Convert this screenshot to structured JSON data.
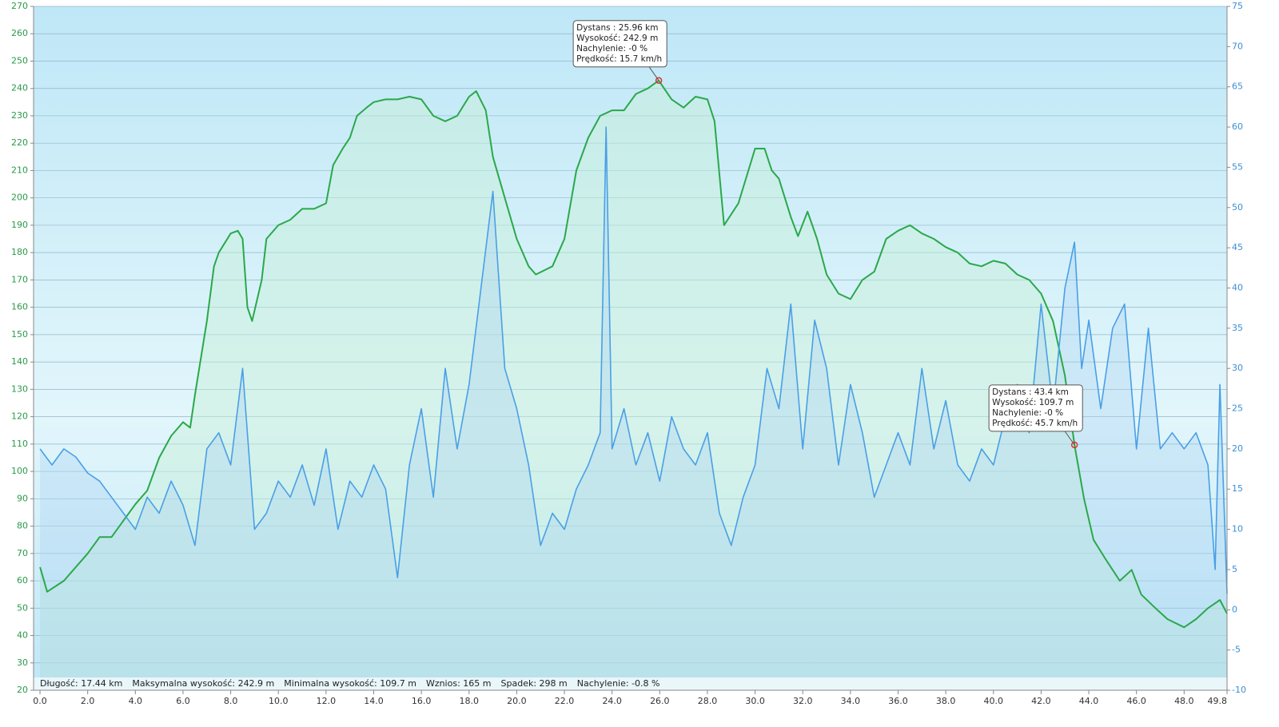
{
  "chart_data": {
    "type": "line",
    "xlim": [
      -0.27,
      49.8
    ],
    "xticks": [
      {
        "value": 0,
        "label": "0.0"
      },
      {
        "value": 2,
        "label": "2.0"
      },
      {
        "value": 4,
        "label": "4.0"
      },
      {
        "value": 6,
        "label": "6.0"
      },
      {
        "value": 8,
        "label": "8.0"
      },
      {
        "value": 10,
        "label": "10.0"
      },
      {
        "value": 12,
        "label": "12.0"
      },
      {
        "value": 14,
        "label": "14.0"
      },
      {
        "value": 16,
        "label": "16.0"
      },
      {
        "value": 18,
        "label": "18.0"
      },
      {
        "value": 20,
        "label": "20.0"
      },
      {
        "value": 22,
        "label": "22.0"
      },
      {
        "value": 24,
        "label": "24.0"
      },
      {
        "value": 26,
        "label": "26.0"
      },
      {
        "value": 28,
        "label": "28.0"
      },
      {
        "value": 30,
        "label": "30.0"
      },
      {
        "value": 32,
        "label": "32.0"
      },
      {
        "value": 34,
        "label": "34.0"
      },
      {
        "value": 36,
        "label": "36.0"
      },
      {
        "value": 38,
        "label": "38.0"
      },
      {
        "value": 40,
        "label": "40.0"
      },
      {
        "value": 42,
        "label": "42.0"
      },
      {
        "value": 44,
        "label": "44.0"
      },
      {
        "value": 46,
        "label": "46.0"
      },
      {
        "value": 48,
        "label": "48.0"
      },
      49.8
    ],
    "ylim": [
      20,
      270
    ],
    "yticks": [
      20,
      30,
      40,
      50,
      60,
      70,
      80,
      90,
      100,
      110,
      120,
      130,
      140,
      150,
      160,
      170,
      180,
      190,
      200,
      210,
      220,
      230,
      240,
      250,
      260,
      270
    ],
    "y2lim": [
      -10,
      75
    ],
    "y2ticks": [
      -10,
      -5,
      0,
      5,
      10,
      15,
      20,
      25,
      30,
      35,
      40,
      45,
      50,
      55,
      60,
      65,
      70,
      75
    ],
    "grid": true,
    "series": [
      {
        "color": "#2aa84a",
        "fill": "#c8f0d8",
        "x": [
          0,
          0.3,
          1,
          2,
          2.5,
          3,
          3.5,
          4,
          4.5,
          5,
          5.5,
          6,
          6.3,
          6.5,
          7,
          7.3,
          7.5,
          8,
          8.3,
          8.5,
          8.7,
          8.9,
          9.3,
          9.5,
          10,
          10.5,
          11,
          11.5,
          12,
          12.3,
          12.7,
          13,
          13.3,
          13.7,
          14,
          14.5,
          15,
          15.5,
          16,
          16.5,
          17,
          17.5,
          18,
          18.3,
          18.7,
          19,
          19.5,
          20,
          20.5,
          20.8,
          21.5,
          22,
          22.5,
          23,
          23.5,
          24,
          24.5,
          25,
          25.5,
          25.96,
          26.5,
          27,
          27.5,
          28,
          28.3,
          28.7,
          29.3,
          30,
          30.4,
          30.7,
          31,
          31.5,
          31.8,
          32.2,
          32.6,
          33,
          33.5,
          34,
          34.5,
          35,
          35.5,
          36,
          36.5,
          37,
          37.5,
          38,
          38.5,
          39,
          39.5,
          40,
          40.5,
          41,
          41.5,
          42,
          42.5,
          43,
          43.4,
          43.8,
          44.2,
          44.7,
          45.3,
          45.8,
          46.2,
          46.8,
          47.3,
          48,
          48.5,
          49,
          49.5,
          49.8
        ],
        "values": [
          65,
          56,
          60,
          70,
          76,
          76,
          82,
          88,
          93,
          105,
          113,
          118,
          116,
          128,
          155,
          175,
          180,
          187,
          188,
          185,
          160,
          155,
          170,
          185,
          190,
          192,
          196,
          196,
          198,
          212,
          218,
          222,
          230,
          233,
          235,
          236,
          236,
          237,
          236,
          230,
          228,
          230,
          237,
          239,
          232,
          215,
          200,
          185,
          175,
          172,
          175,
          185,
          210,
          222,
          230,
          232,
          232,
          238,
          240,
          242.9,
          236,
          233,
          237,
          236,
          228,
          190,
          198,
          218,
          218,
          210,
          207,
          193,
          186,
          195,
          185,
          172,
          165,
          163,
          170,
          173,
          185,
          188,
          190,
          187,
          185,
          182,
          180,
          176,
          175,
          177,
          176,
          172,
          170,
          165,
          155,
          135,
          109.7,
          90,
          75,
          68,
          60,
          64,
          55,
          50,
          46,
          43,
          46,
          50,
          53,
          48
        ]
      },
      {
        "color": "#4a9fe6",
        "fill": "#a8d0f2",
        "axis": "y2",
        "x": [
          0,
          0.5,
          1,
          1.5,
          2,
          2.5,
          3,
          3.5,
          4,
          4.5,
          5,
          5.5,
          6,
          6.5,
          7,
          7.5,
          8,
          8.5,
          9,
          9.5,
          10,
          10.5,
          11,
          11.5,
          12,
          12.5,
          13,
          13.5,
          14,
          14.5,
          15,
          15.5,
          16,
          16.5,
          17,
          17.5,
          18,
          18.5,
          19,
          19.5,
          20,
          20.5,
          21,
          21.5,
          22,
          22.5,
          23,
          23.5,
          23.75,
          24,
          24.5,
          25,
          25.5,
          26,
          26.5,
          27,
          27.5,
          28,
          28.5,
          29,
          29.5,
          30,
          30.5,
          31,
          31.5,
          32,
          32.5,
          33,
          33.5,
          34,
          34.5,
          35,
          35.5,
          36,
          36.5,
          37,
          37.5,
          38,
          38.5,
          39,
          39.5,
          40,
          40.5,
          41,
          41.5,
          42,
          42.5,
          43,
          43.4,
          43.7,
          44,
          44.5,
          45,
          45.5,
          46,
          46.5,
          47,
          47.5,
          48,
          48.5,
          49,
          49.3,
          49.5,
          49.8
        ],
        "values": [
          20,
          18,
          20,
          19,
          17,
          16,
          14,
          12,
          10,
          14,
          12,
          16,
          13,
          8,
          20,
          22,
          18,
          30,
          10,
          12,
          16,
          14,
          18,
          13,
          20,
          10,
          16,
          14,
          18,
          15,
          4,
          18,
          25,
          14,
          30,
          20,
          28,
          40,
          52,
          30,
          25,
          18,
          8,
          12,
          10,
          15,
          18,
          22,
          60,
          20,
          25,
          18,
          22,
          16,
          24,
          20,
          18,
          22,
          12,
          8,
          14,
          18,
          30,
          25,
          38,
          20,
          36,
          30,
          18,
          28,
          22,
          14,
          18,
          22,
          18,
          30,
          20,
          26,
          18,
          16,
          20,
          18,
          24,
          28,
          22,
          38,
          25,
          40,
          45.7,
          30,
          36,
          25,
          35,
          38,
          20,
          35,
          20,
          22,
          20,
          22,
          18,
          5,
          28,
          2
        ]
      }
    ],
    "annotations": [
      {
        "x": 25.96,
        "y": 242.9,
        "lines": [
          "Dystans  : 25.96 km",
          "Wysokość: 242.9 m",
          "Nachylenie: -0 %",
          "Prędkość: 15.7 km/h"
        ]
      },
      {
        "x": 43.4,
        "y": 109.7,
        "lines": [
          "Dystans  : 43.4 km",
          "Wysokość: 109.7 m",
          "Nachylenie: -0 %",
          "Prędkość: 45.7 km/h"
        ]
      }
    ],
    "stats": [
      "Długość: 17.44 km",
      "Maksymalna wysokość: 242.9 m",
      "Minimalna wysokość: 109.7 m",
      "Wznios: 165 m",
      "Spadek: 298 m",
      "Nachylenie: -0.8 %"
    ]
  }
}
